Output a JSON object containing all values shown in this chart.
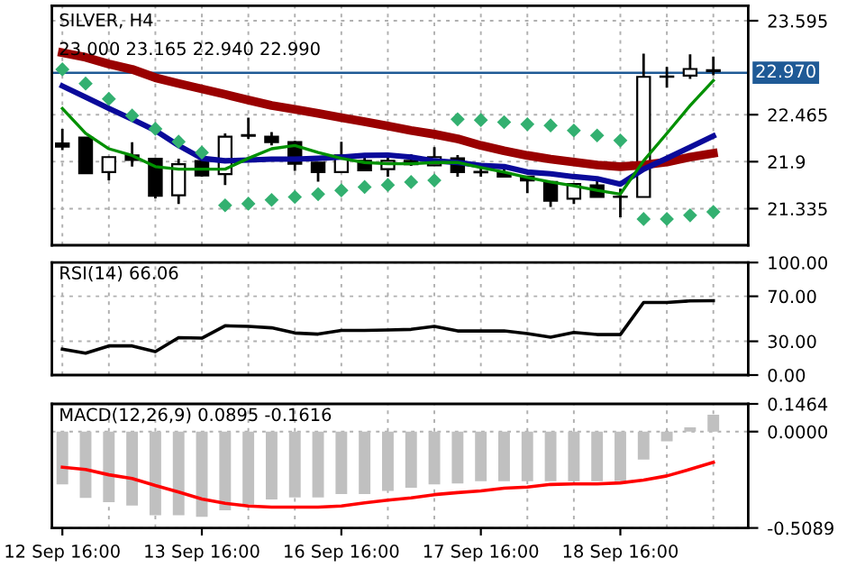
{
  "chart_data": [
    {
      "type": "candlestick",
      "title": "SILVER, H4",
      "subtitle": "23.000 23.165 22.940 22.990",
      "categories": [
        null,
        null,
        null,
        null,
        null,
        null,
        null,
        null,
        null,
        null,
        null,
        null,
        null,
        null,
        null,
        null,
        null,
        null,
        null,
        null,
        null,
        null,
        null,
        null,
        null,
        null,
        null,
        null,
        null
      ],
      "ohlc": [
        [
          22.12,
          22.295,
          22.04,
          22.08
        ],
        [
          22.19,
          22.19,
          21.76,
          21.76
        ],
        [
          21.775,
          21.96,
          21.675,
          21.955
        ],
        [
          21.975,
          22.135,
          21.84,
          21.92
        ],
        [
          21.935,
          21.935,
          21.46,
          21.49
        ],
        [
          21.495,
          21.935,
          21.39,
          21.87
        ],
        [
          21.908,
          21.92,
          21.72,
          21.735
        ],
        [
          21.75,
          22.24,
          21.62,
          22.2
        ],
        [
          22.21,
          22.43,
          22.175,
          22.22
        ],
        [
          22.2,
          22.255,
          22.095,
          22.135
        ],
        [
          22.135,
          22.15,
          21.79,
          21.875
        ],
        [
          21.89,
          21.89,
          21.66,
          21.775
        ],
        [
          21.775,
          22.14,
          21.775,
          21.975
        ],
        [
          21.91,
          21.96,
          21.79,
          21.795
        ],
        [
          21.81,
          21.99,
          21.72,
          21.91
        ],
        [
          21.91,
          21.99,
          21.85,
          21.87
        ],
        [
          21.855,
          22.075,
          21.85,
          21.955
        ],
        [
          21.94,
          21.98,
          21.72,
          21.775
        ],
        [
          21.778,
          21.84,
          21.72,
          21.772
        ],
        [
          21.76,
          21.84,
          21.72,
          21.72
        ],
        [
          21.72,
          21.72,
          21.52,
          21.675
        ],
        [
          21.655,
          21.655,
          21.355,
          21.43
        ],
        [
          21.455,
          21.63,
          21.39,
          21.63
        ],
        [
          21.615,
          21.675,
          21.47,
          21.475
        ],
        [
          21.48,
          21.575,
          21.23,
          21.475
        ],
        [
          21.475,
          23.2,
          21.475,
          22.92
        ],
        [
          22.92,
          23.04,
          22.79,
          22.925
        ],
        [
          22.935,
          23.19,
          22.895,
          23.015
        ],
        [
          23.0,
          23.165,
          22.94,
          22.99
        ]
      ],
      "series": [
        {
          "type": "line",
          "color": "#990000",
          "values": [
            23.21,
            23.155,
            23.075,
            23.01,
            22.91,
            22.84,
            22.775,
            22.71,
            22.64,
            22.575,
            22.53,
            22.48,
            22.43,
            22.38,
            22.33,
            22.275,
            22.23,
            22.175,
            22.095,
            22.03,
            21.975,
            21.93,
            21.895,
            21.86,
            21.84,
            21.86,
            21.895,
            21.955,
            22.0
          ]
        },
        {
          "type": "line",
          "color": "#0a0a9a",
          "values": [
            22.81,
            22.675,
            22.54,
            22.41,
            22.275,
            22.095,
            21.94,
            21.91,
            21.92,
            21.93,
            21.93,
            21.94,
            21.955,
            21.975,
            21.98,
            21.955,
            21.91,
            21.89,
            21.855,
            21.84,
            21.775,
            21.755,
            21.72,
            21.695,
            21.63,
            21.81,
            21.94,
            22.075,
            22.21
          ]
        },
        {
          "type": "line",
          "color": "#009000",
          "values": [
            22.54,
            22.24,
            22.055,
            21.975,
            21.84,
            21.81,
            21.81,
            21.81,
            21.94,
            22.055,
            22.095,
            22.01,
            21.94,
            21.89,
            21.875,
            21.875,
            21.89,
            21.89,
            21.83,
            21.775,
            21.71,
            21.655,
            21.61,
            21.555,
            21.51,
            21.91,
            22.24,
            22.575,
            22.875
          ]
        },
        {
          "type": "scatter",
          "color": "#33b070",
          "marker": "diamond",
          "values": [
            23.01,
            22.84,
            22.655,
            22.455,
            22.295,
            22.14,
            22.01,
            21.375,
            21.395,
            21.44,
            21.475,
            21.51,
            21.555,
            21.595,
            21.62,
            21.655,
            21.675,
            22.41,
            22.4,
            22.375,
            22.35,
            22.335,
            22.275,
            22.215,
            22.155,
            21.21,
            21.21,
            21.255,
            21.295
          ]
        }
      ],
      "ref_lines": [
        {
          "axis": "y",
          "value": 22.97,
          "label": "22.970",
          "color": "#1f5a96"
        }
      ],
      "ylim": [
        20.895,
        23.775
      ],
      "yticks": [
        21.335,
        21.9,
        22.465,
        23.595
      ],
      "grid": true,
      "tick_labels": "y"
    },
    {
      "type": "line",
      "title": "RSI(14) 66.06",
      "categories": [
        null,
        null,
        null,
        null,
        null,
        null,
        null,
        null,
        null,
        null,
        null,
        null,
        null,
        null,
        null,
        null,
        null,
        null,
        null,
        null,
        null,
        null,
        null,
        null,
        null,
        null,
        null,
        null,
        null
      ],
      "series": [
        {
          "color": "#000000",
          "values": [
            23,
            19.4,
            25.9,
            25.9,
            20.8,
            33.2,
            32.8,
            43.8,
            43.3,
            42,
            37.4,
            36.4,
            39.7,
            39.7,
            40.1,
            40.6,
            43.3,
            39.2,
            39.2,
            39.2,
            36.9,
            33.7,
            37.8,
            36,
            36,
            64.5,
            64.5,
            65.9,
            66.06
          ]
        }
      ],
      "ylim": [
        0,
        100
      ],
      "yticks": [
        {
          "value": 0,
          "label": "0.00"
        },
        {
          "value": 30,
          "label": "30.00"
        },
        {
          "value": 70,
          "label": "70.00"
        },
        {
          "value": 100,
          "label": "100.00"
        }
      ],
      "grid": true,
      "tick_labels": "y"
    },
    {
      "type": "bar",
      "title": "MACD(12,26,9) 0.0895 -0.1616",
      "categories": [
        "12 Sep 16:00",
        null,
        null,
        null,
        null,
        null,
        "13 Sep 16:00",
        null,
        null,
        null,
        null,
        null,
        "16 Sep 16:00",
        null,
        null,
        null,
        null,
        null,
        "17 Sep 16:00",
        null,
        null,
        null,
        null,
        null,
        "18 Sep 16:00",
        null,
        null,
        null,
        null
      ],
      "series": [
        {
          "type": "bar",
          "color": "#c0c0c0",
          "values": [
            -0.279,
            -0.35,
            -0.373,
            -0.39,
            -0.442,
            -0.442,
            -0.45,
            -0.416,
            -0.385,
            -0.359,
            -0.348,
            -0.348,
            -0.33,
            -0.33,
            -0.313,
            -0.296,
            -0.279,
            -0.274,
            -0.262,
            -0.262,
            -0.262,
            -0.262,
            -0.262,
            -0.262,
            -0.262,
            -0.148,
            -0.051,
            0.023,
            0.0895
          ]
        },
        {
          "type": "line",
          "color": "#ff0000",
          "values": [
            -0.188,
            -0.2,
            -0.228,
            -0.248,
            -0.285,
            -0.319,
            -0.356,
            -0.379,
            -0.393,
            -0.399,
            -0.399,
            -0.399,
            -0.393,
            -0.376,
            -0.362,
            -0.35,
            -0.333,
            -0.322,
            -0.313,
            -0.299,
            -0.293,
            -0.279,
            -0.276,
            -0.276,
            -0.271,
            -0.256,
            -0.234,
            -0.199,
            -0.1616
          ]
        }
      ],
      "ylim": [
        -0.5089,
        0.1464
      ],
      "yticks": [
        {
          "value": -0.5089,
          "label": "-0.5089"
        },
        {
          "value": 0,
          "label": "0.0000"
        },
        {
          "value": 0.1464,
          "label": "0.1464"
        }
      ],
      "grid": true
    }
  ]
}
